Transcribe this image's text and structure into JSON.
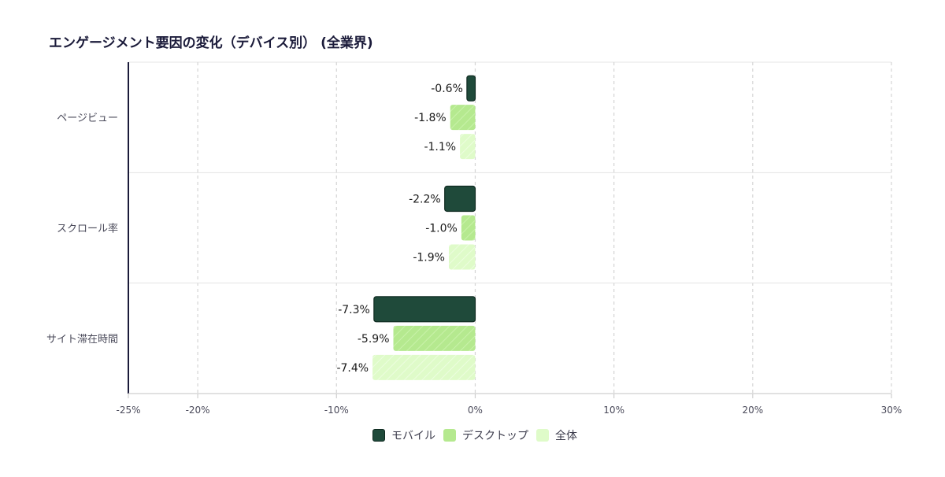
{
  "chart_data": {
    "type": "bar",
    "orientation": "horizontal",
    "title": "エンゲージメント要因の変化（デバイス別） (全業界)",
    "categories": [
      "ページビュー",
      "スクロール率",
      "サイト滞在時間"
    ],
    "series": [
      {
        "name": "モバイル",
        "values": [
          -0.6,
          -2.2,
          -7.3
        ],
        "labels": [
          "-0.6%",
          "-2.2%",
          "-7.3%"
        ],
        "color": "#1f4a3a",
        "stroke": "#0f2a20"
      },
      {
        "name": "デスクトップ",
        "values": [
          -1.8,
          -1.0,
          -5.9
        ],
        "labels": [
          "-1.8%",
          "-1.0%",
          "-5.9%"
        ],
        "color": "#b5e98f",
        "stroke": "#9fd978"
      },
      {
        "name": "全体",
        "values": [
          -1.1,
          -1.9,
          -7.4
        ],
        "labels": [
          "-1.1%",
          "-1.9%",
          "-7.4%"
        ],
        "color": "#dffbc9",
        "stroke": "#cdf2b0"
      }
    ],
    "xlim": [
      -25,
      30
    ],
    "xticks": [
      -25,
      -20,
      -10,
      0,
      10,
      20,
      30
    ],
    "xtick_labels": [
      "-25%",
      "-20%",
      "-10%",
      "0%",
      "10%",
      "20%",
      "30%"
    ],
    "grid": true,
    "legend_position": "bottom-center"
  }
}
